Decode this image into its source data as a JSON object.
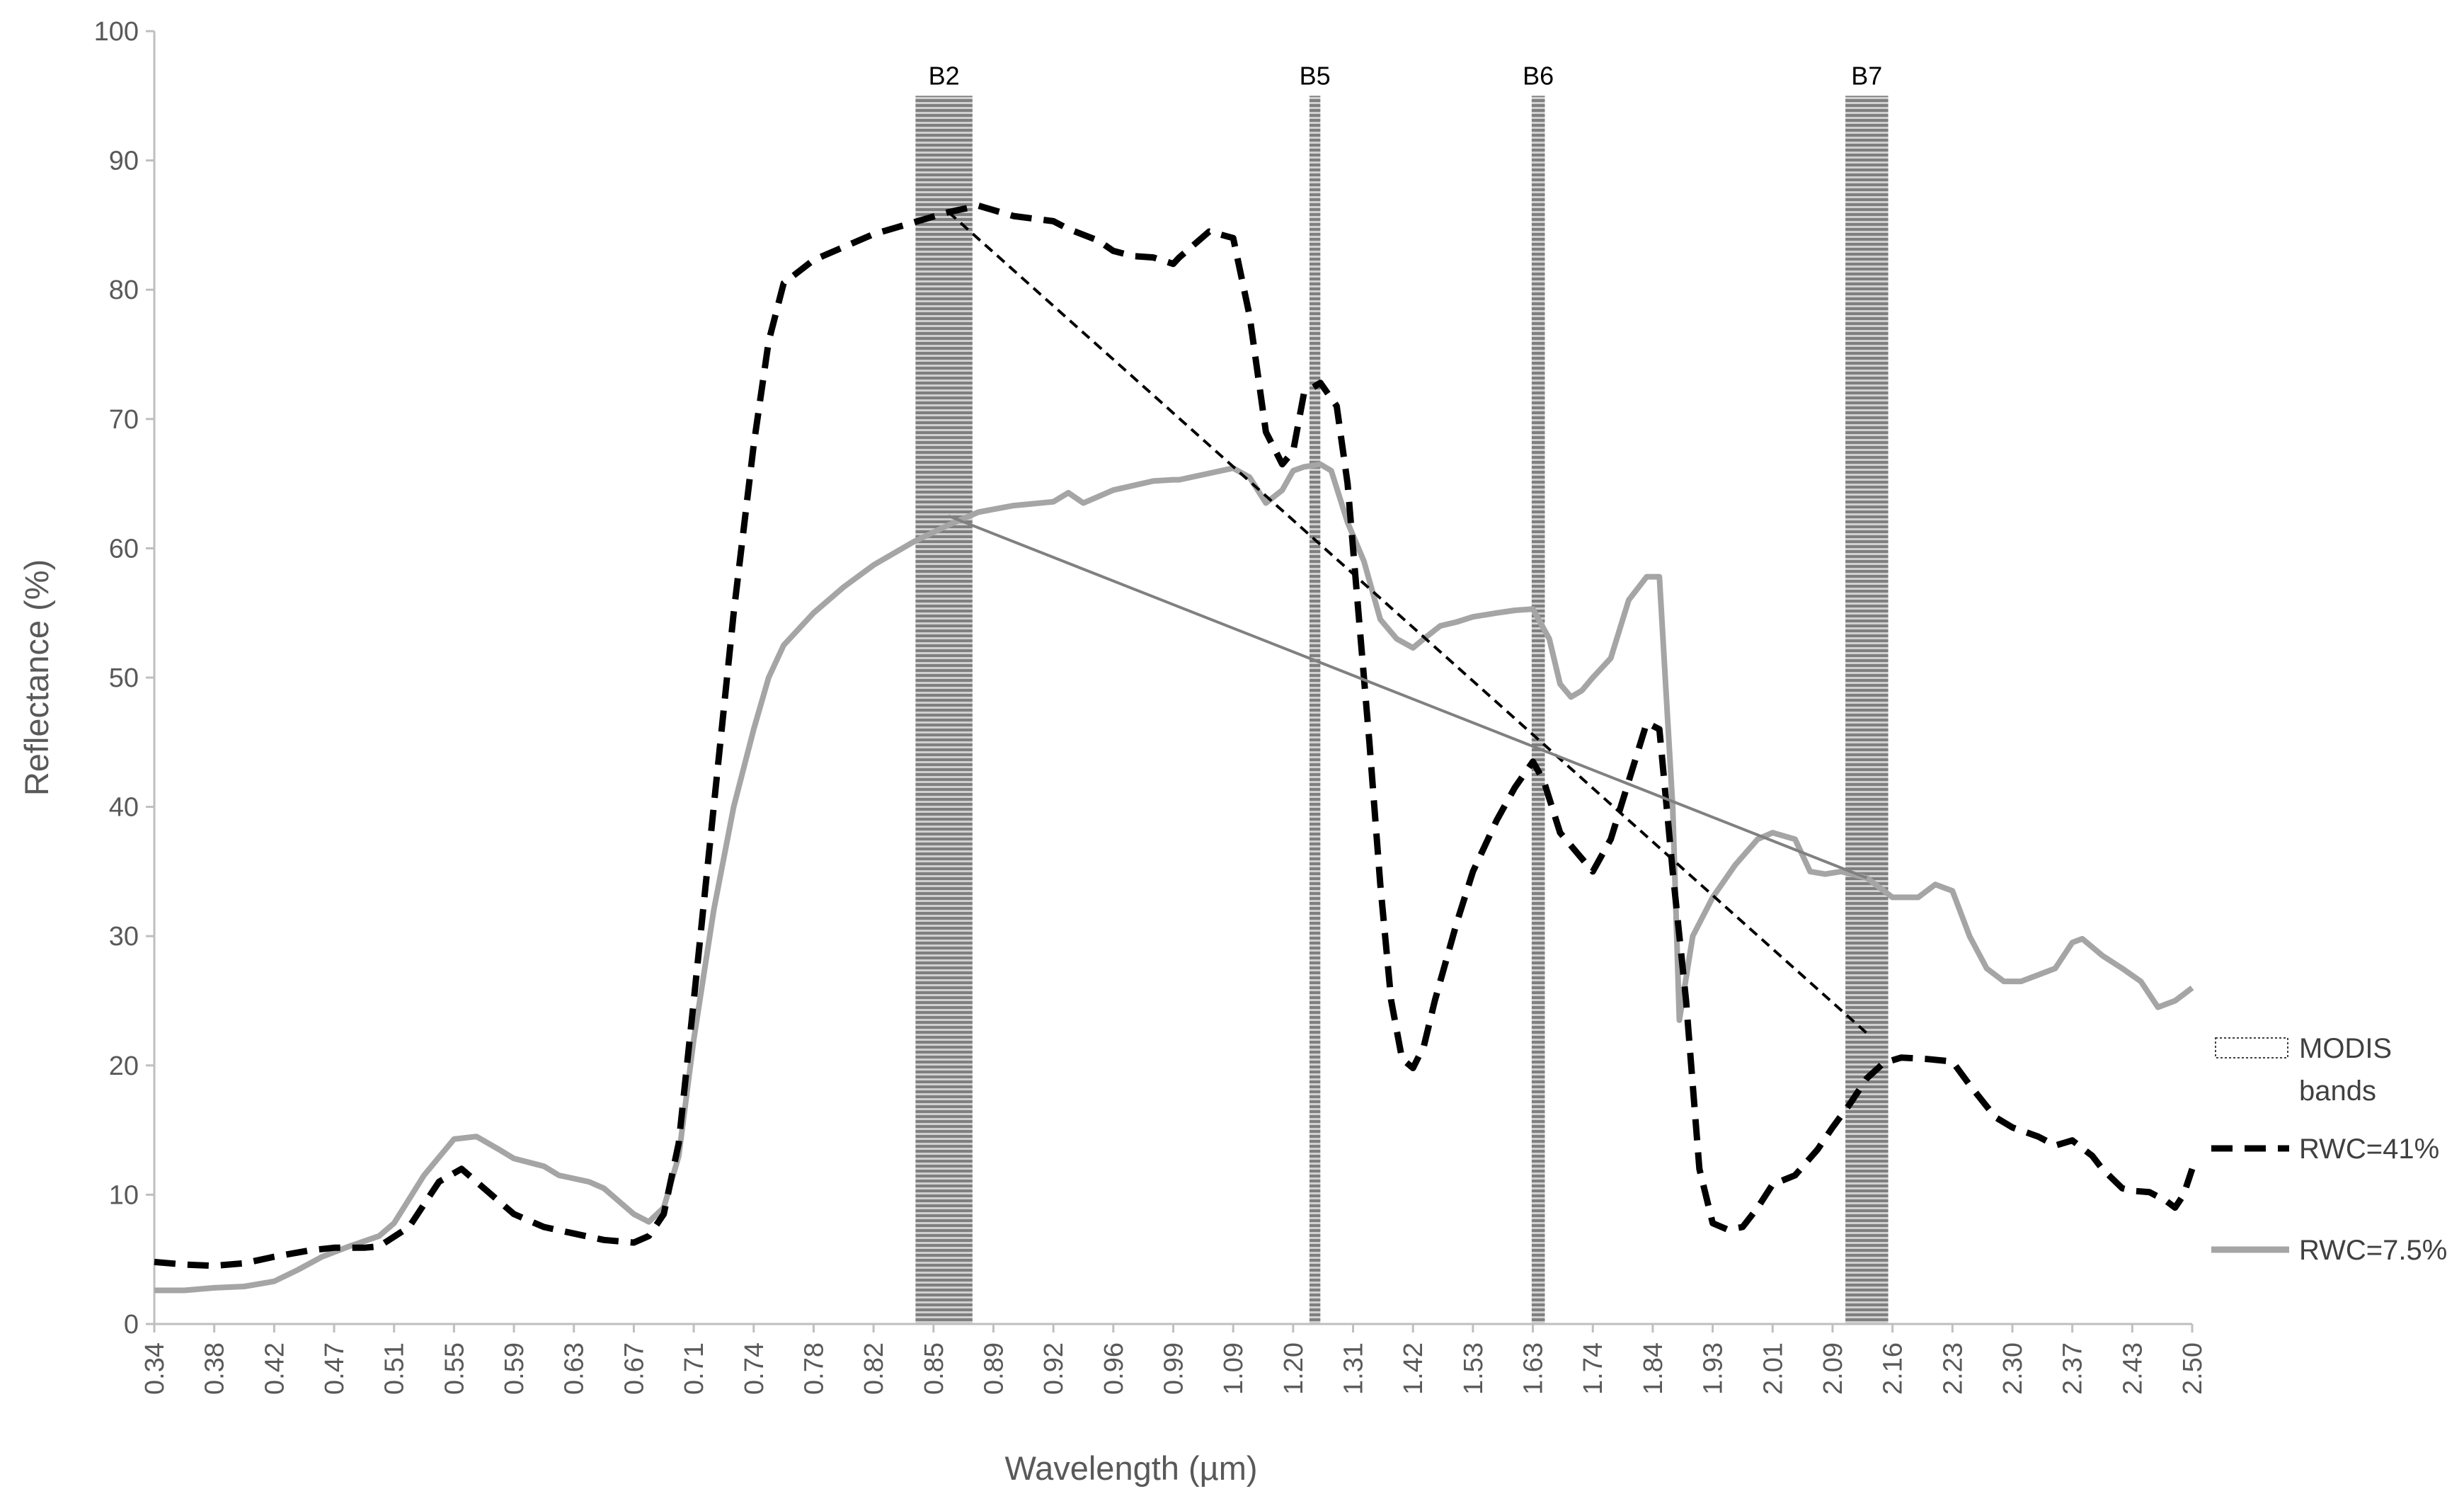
{
  "chart_data": {
    "type": "line",
    "xlabel": "Wavelength (µm)",
    "ylabel": "Reflectance (%)",
    "ylim": [
      0,
      100
    ],
    "yticks": [
      0,
      10,
      20,
      30,
      40,
      50,
      60,
      70,
      80,
      90,
      100
    ],
    "x_tick_labels": [
      "0.34",
      "0.38",
      "0.42",
      "0.47",
      "0.51",
      "0.55",
      "0.59",
      "0.63",
      "0.67",
      "0.71",
      "0.74",
      "0.78",
      "0.82",
      "0.85",
      "0.89",
      "0.92",
      "0.96",
      "0.99",
      "1.09",
      "1.20",
      "1.31",
      "1.42",
      "1.53",
      "1.63",
      "1.74",
      "1.84",
      "1.93",
      "2.01",
      "2.09",
      "2.16",
      "2.23",
      "2.30",
      "2.37",
      "2.43",
      "2.50"
    ],
    "grid": false,
    "legend_position": "right",
    "bands": [
      {
        "label": "B2",
        "from": 0.841,
        "to": 0.876
      },
      {
        "label": "B5",
        "from": 1.23,
        "to": 1.25
      },
      {
        "label": "B6",
        "from": 1.628,
        "to": 1.652
      },
      {
        "label": "B7",
        "from": 2.105,
        "to": 2.155
      }
    ],
    "band_top": 95,
    "series": [
      {
        "name": "RWC=41%",
        "style": "dashed",
        "color": "#000000",
        "points": [
          [
            0.34,
            4.8
          ],
          [
            0.36,
            4.6
          ],
          [
            0.38,
            4.5
          ],
          [
            0.4,
            4.7
          ],
          [
            0.42,
            5.2
          ],
          [
            0.45,
            5.7
          ],
          [
            0.47,
            5.9
          ],
          [
            0.49,
            5.9
          ],
          [
            0.5,
            6.0
          ],
          [
            0.52,
            7.5
          ],
          [
            0.54,
            11.0
          ],
          [
            0.555,
            12.0
          ],
          [
            0.57,
            10.5
          ],
          [
            0.59,
            8.5
          ],
          [
            0.61,
            7.5
          ],
          [
            0.63,
            7.0
          ],
          [
            0.65,
            6.5
          ],
          [
            0.67,
            6.3
          ],
          [
            0.68,
            6.8
          ],
          [
            0.69,
            8.5
          ],
          [
            0.7,
            14.0
          ],
          [
            0.71,
            25.0
          ],
          [
            0.72,
            40.0
          ],
          [
            0.73,
            55.0
          ],
          [
            0.74,
            68.0
          ],
          [
            0.75,
            76.0
          ],
          [
            0.76,
            80.5
          ],
          [
            0.78,
            82.3
          ],
          [
            0.8,
            83.3
          ],
          [
            0.82,
            84.3
          ],
          [
            0.84,
            85.2
          ],
          [
            0.86,
            86.0
          ],
          [
            0.88,
            86.5
          ],
          [
            0.9,
            85.7
          ],
          [
            0.92,
            85.3
          ],
          [
            0.93,
            84.7
          ],
          [
            0.95,
            83.8
          ],
          [
            0.96,
            83.0
          ],
          [
            0.97,
            82.6
          ],
          [
            0.98,
            82.5
          ],
          [
            0.99,
            82.0
          ],
          [
            1.0,
            82.5
          ],
          [
            1.05,
            84.5
          ],
          [
            1.09,
            84.0
          ],
          [
            1.12,
            78.0
          ],
          [
            1.15,
            69.0
          ],
          [
            1.18,
            66.5
          ],
          [
            1.2,
            67.5
          ],
          [
            1.22,
            72.0
          ],
          [
            1.25,
            72.8
          ],
          [
            1.28,
            71.0
          ],
          [
            1.3,
            65.0
          ],
          [
            1.32,
            55.0
          ],
          [
            1.34,
            45.0
          ],
          [
            1.36,
            34.0
          ],
          [
            1.38,
            25.0
          ],
          [
            1.4,
            20.5
          ],
          [
            1.42,
            19.8
          ],
          [
            1.44,
            21.5
          ],
          [
            1.46,
            25.0
          ],
          [
            1.5,
            31.0
          ],
          [
            1.53,
            35.0
          ],
          [
            1.57,
            39.0
          ],
          [
            1.6,
            41.5
          ],
          [
            1.63,
            43.5
          ],
          [
            1.65,
            42.0
          ],
          [
            1.68,
            38.0
          ],
          [
            1.71,
            36.5
          ],
          [
            1.74,
            35.0
          ],
          [
            1.77,
            37.5
          ],
          [
            1.8,
            42.0
          ],
          [
            1.83,
            46.5
          ],
          [
            1.85,
            46.0
          ],
          [
            1.87,
            35.0
          ],
          [
            1.89,
            25.0
          ],
          [
            1.91,
            12.0
          ],
          [
            1.93,
            7.8
          ],
          [
            1.95,
            7.3
          ],
          [
            1.97,
            7.5
          ],
          [
            1.99,
            9.0
          ],
          [
            2.01,
            10.8
          ],
          [
            2.04,
            11.5
          ],
          [
            2.07,
            13.5
          ],
          [
            2.09,
            15.2
          ],
          [
            2.11,
            17.0
          ],
          [
            2.13,
            19.0
          ],
          [
            2.15,
            20.2
          ],
          [
            2.17,
            20.6
          ],
          [
            2.2,
            20.5
          ],
          [
            2.23,
            20.3
          ],
          [
            2.25,
            18.5
          ],
          [
            2.28,
            16.0
          ],
          [
            2.3,
            15.2
          ],
          [
            2.33,
            14.5
          ],
          [
            2.35,
            13.8
          ],
          [
            2.37,
            14.2
          ],
          [
            2.39,
            13.0
          ],
          [
            2.4,
            12.0
          ],
          [
            2.42,
            10.5
          ],
          [
            2.43,
            10.3
          ],
          [
            2.45,
            10.2
          ],
          [
            2.47,
            9.5
          ],
          [
            2.48,
            9.0
          ],
          [
            2.49,
            10.0
          ],
          [
            2.5,
            12.0
          ]
        ]
      },
      {
        "name": "RWC=7.5%",
        "style": "solid",
        "color": "#a5a5a5",
        "points": [
          [
            0.34,
            2.6
          ],
          [
            0.36,
            2.6
          ],
          [
            0.38,
            2.8
          ],
          [
            0.4,
            2.9
          ],
          [
            0.42,
            3.3
          ],
          [
            0.44,
            4.2
          ],
          [
            0.46,
            5.2
          ],
          [
            0.48,
            6.0
          ],
          [
            0.5,
            6.8
          ],
          [
            0.51,
            7.8
          ],
          [
            0.53,
            11.5
          ],
          [
            0.55,
            14.3
          ],
          [
            0.565,
            14.5
          ],
          [
            0.58,
            13.5
          ],
          [
            0.59,
            12.8
          ],
          [
            0.61,
            12.2
          ],
          [
            0.62,
            11.5
          ],
          [
            0.64,
            11.0
          ],
          [
            0.65,
            10.5
          ],
          [
            0.67,
            8.5
          ],
          [
            0.68,
            7.9
          ],
          [
            0.69,
            9.0
          ],
          [
            0.7,
            13.0
          ],
          [
            0.71,
            22.0
          ],
          [
            0.72,
            32.0
          ],
          [
            0.73,
            40.0
          ],
          [
            0.74,
            46.0
          ],
          [
            0.75,
            50.0
          ],
          [
            0.76,
            52.5
          ],
          [
            0.78,
            55.0
          ],
          [
            0.8,
            57.0
          ],
          [
            0.82,
            58.7
          ],
          [
            0.84,
            60.5
          ],
          [
            0.86,
            61.8
          ],
          [
            0.88,
            62.8
          ],
          [
            0.9,
            63.3
          ],
          [
            0.92,
            63.6
          ],
          [
            0.93,
            64.3
          ],
          [
            0.94,
            63.5
          ],
          [
            0.96,
            64.5
          ],
          [
            0.98,
            65.2
          ],
          [
            0.99,
            65.3
          ],
          [
            1.0,
            65.3
          ],
          [
            1.05,
            65.8
          ],
          [
            1.09,
            66.2
          ],
          [
            1.12,
            65.5
          ],
          [
            1.15,
            63.5
          ],
          [
            1.18,
            64.5
          ],
          [
            1.2,
            66.0
          ],
          [
            1.22,
            66.3
          ],
          [
            1.25,
            66.5
          ],
          [
            1.27,
            66.0
          ],
          [
            1.3,
            62.0
          ],
          [
            1.33,
            59.0
          ],
          [
            1.36,
            54.5
          ],
          [
            1.39,
            53.0
          ],
          [
            1.42,
            52.3
          ],
          [
            1.44,
            53.0
          ],
          [
            1.47,
            54.0
          ],
          [
            1.5,
            54.3
          ],
          [
            1.53,
            54.7
          ],
          [
            1.57,
            55.0
          ],
          [
            1.6,
            55.2
          ],
          [
            1.63,
            55.3
          ],
          [
            1.66,
            53.0
          ],
          [
            1.68,
            49.5
          ],
          [
            1.7,
            48.5
          ],
          [
            1.72,
            49.0
          ],
          [
            1.74,
            50.0
          ],
          [
            1.77,
            51.5
          ],
          [
            1.8,
            56.0
          ],
          [
            1.83,
            57.8
          ],
          [
            1.85,
            57.8
          ],
          [
            1.87,
            40.0
          ],
          [
            1.88,
            23.5
          ],
          [
            1.9,
            30.0
          ],
          [
            1.93,
            33.0
          ],
          [
            1.96,
            35.5
          ],
          [
            1.99,
            37.5
          ],
          [
            2.01,
            38.0
          ],
          [
            2.04,
            37.5
          ],
          [
            2.06,
            35.0
          ],
          [
            2.08,
            34.8
          ],
          [
            2.1,
            35.0
          ],
          [
            2.13,
            34.5
          ],
          [
            2.16,
            33.0
          ],
          [
            2.19,
            33.0
          ],
          [
            2.21,
            34.0
          ],
          [
            2.23,
            33.5
          ],
          [
            2.25,
            30.0
          ],
          [
            2.27,
            27.5
          ],
          [
            2.29,
            26.5
          ],
          [
            2.31,
            26.5
          ],
          [
            2.33,
            27.0
          ],
          [
            2.35,
            27.5
          ],
          [
            2.37,
            29.5
          ],
          [
            2.38,
            29.8
          ],
          [
            2.4,
            28.5
          ],
          [
            2.42,
            27.5
          ],
          [
            2.44,
            26.5
          ],
          [
            2.46,
            24.5
          ],
          [
            2.48,
            25.0
          ],
          [
            2.49,
            25.5
          ],
          [
            2.5,
            26.0
          ]
        ]
      },
      {
        "style": "dashed-thin",
        "color": "#000000",
        "points": [
          [
            0.86,
            86.0
          ],
          [
            2.13,
            22.5
          ]
        ]
      },
      {
        "style": "solid-thin",
        "color": "#808080",
        "points": [
          [
            0.86,
            62.5
          ],
          [
            2.13,
            34.5
          ]
        ]
      }
    ],
    "legend": [
      {
        "label": "MODIS bands",
        "line1": "MODIS",
        "line2": "bands",
        "kind": "band"
      },
      {
        "label": "RWC=41%",
        "kind": "dashed"
      },
      {
        "label": "RWC=7.5%",
        "kind": "solid"
      }
    ]
  }
}
